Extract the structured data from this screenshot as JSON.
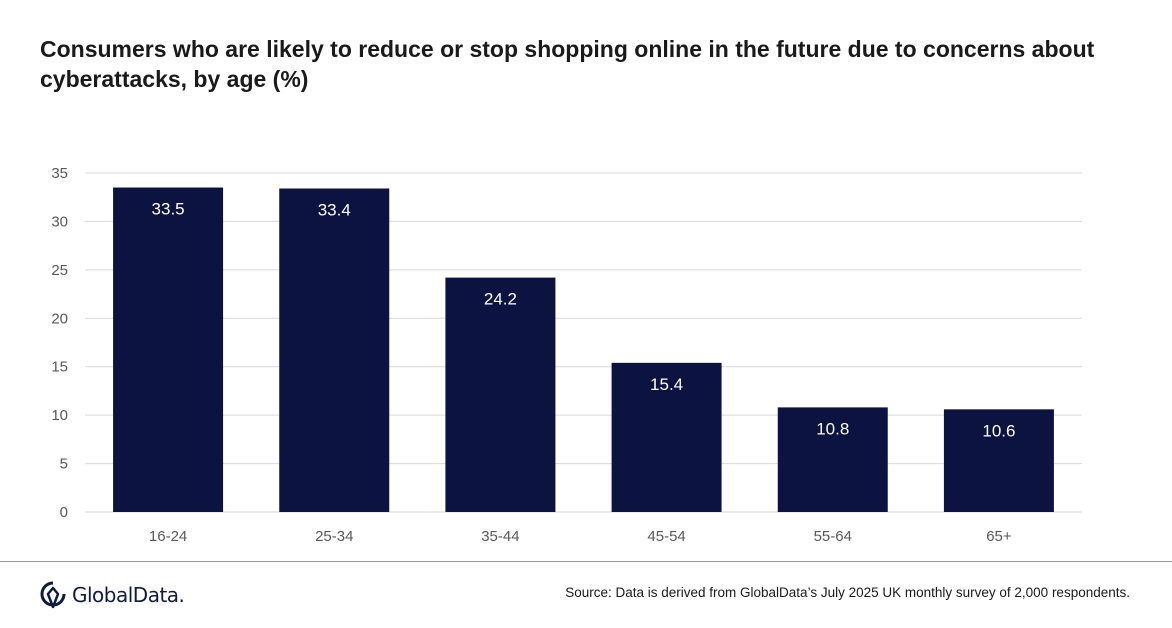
{
  "header": {
    "title": "Consumers who are likely to reduce or stop shopping online in the future due to concerns about cyberattacks, by age (%)"
  },
  "footer": {
    "logo_text": "GlobalData.",
    "source": "Source: Data is derived from GlobalData’s July 2025 UK monthly survey of 2,000 respondents."
  },
  "colors": {
    "bar": "#0d1340",
    "grid": "#d9d9d9",
    "axis_text": "#595959",
    "label": "#ffffff"
  },
  "chart_data": {
    "type": "bar",
    "title": "Consumers who are likely to reduce or stop shopping online in the future due to concerns about cyberattacks, by age (%)",
    "xlabel": "",
    "ylabel": "",
    "categories": [
      "16-24",
      "25-34",
      "35-44",
      "45-54",
      "55-64",
      "65+"
    ],
    "values": [
      33.5,
      33.4,
      24.2,
      15.4,
      10.8,
      10.6
    ],
    "data_labels": [
      "33.5",
      "33.4",
      "24.2",
      "15.4",
      "10.8",
      "10.6"
    ],
    "ylim": [
      0,
      35
    ],
    "yticks": [
      0,
      5,
      10,
      15,
      20,
      25,
      30,
      35
    ],
    "grid": true,
    "legend": "none"
  }
}
